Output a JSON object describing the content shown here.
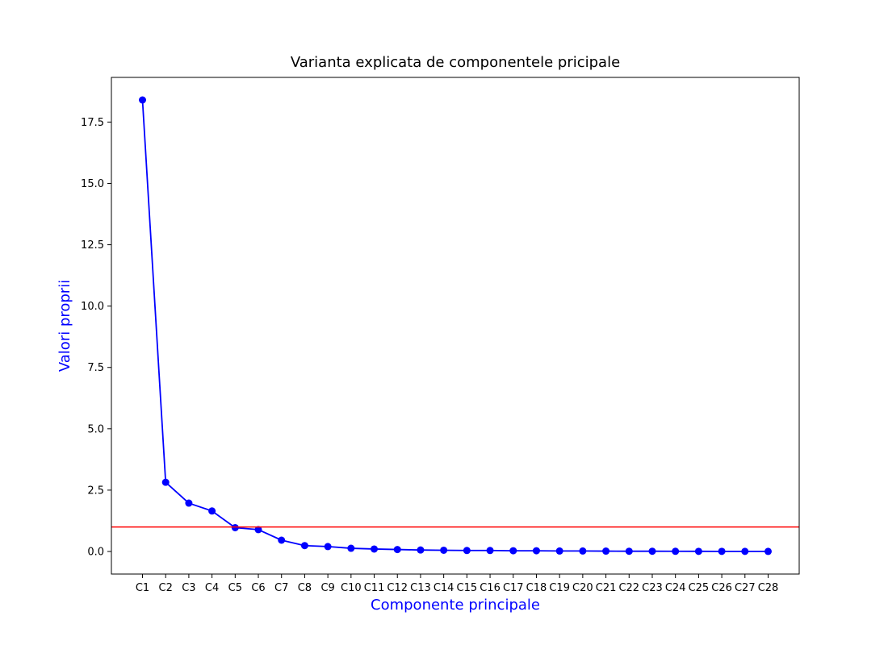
{
  "chart_data": {
    "type": "line",
    "title": "Varianta explicata de componentele pricipale",
    "xlabel": "Componente principale",
    "ylabel": "Valori proprii",
    "label_color": "#0000ff",
    "categories": [
      "C1",
      "C2",
      "C3",
      "C4",
      "C5",
      "C6",
      "C7",
      "C8",
      "C9",
      "C10",
      "C11",
      "C12",
      "C13",
      "C14",
      "C15",
      "C16",
      "C17",
      "C18",
      "C19",
      "C20",
      "C21",
      "C22",
      "C23",
      "C24",
      "C25",
      "C26",
      "C27",
      "C28"
    ],
    "series": [
      {
        "color": "#0000ff",
        "marker": "circle",
        "values": [
          18.4,
          2.82,
          1.97,
          1.65,
          0.97,
          0.89,
          0.46,
          0.24,
          0.2,
          0.13,
          0.1,
          0.08,
          0.06,
          0.05,
          0.04,
          0.04,
          0.03,
          0.03,
          0.02,
          0.02,
          0.015,
          0.01,
          0.01,
          0.008,
          0.006,
          0.005,
          0.004,
          0.003
        ]
      }
    ],
    "reference_line": {
      "orientation": "horizontal",
      "y": 1.0,
      "color": "#ff0000"
    },
    "yticks": [
      "0.0",
      "2.5",
      "5.0",
      "7.5",
      "10.0",
      "12.5",
      "15.0",
      "17.5"
    ],
    "ylim": [
      -0.92,
      19.32
    ],
    "grid": false,
    "legend": "none"
  }
}
